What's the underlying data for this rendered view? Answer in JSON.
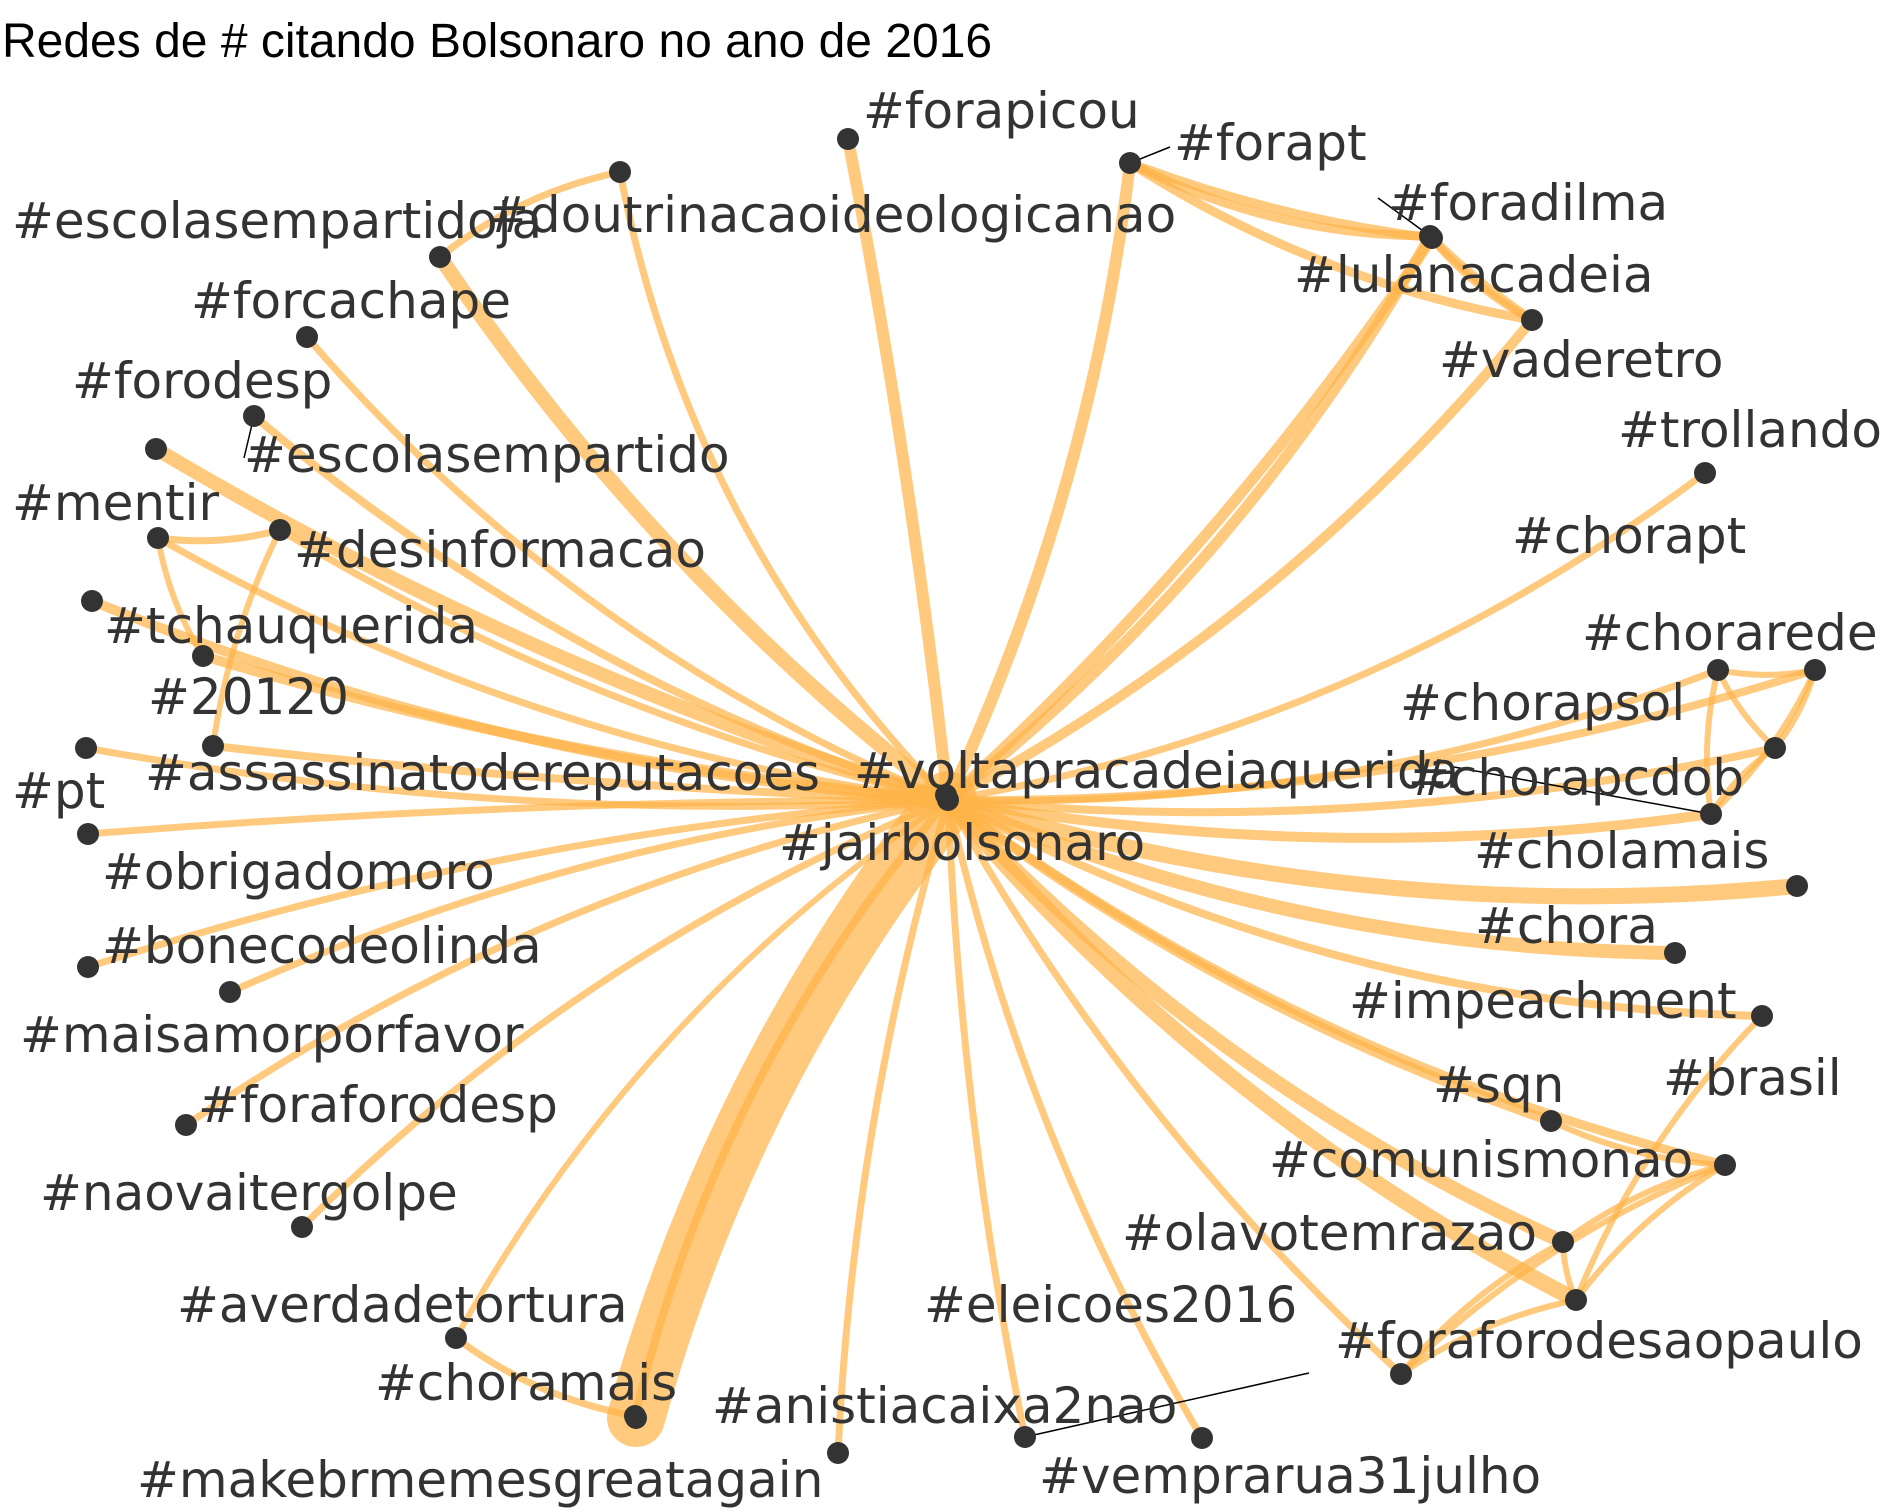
{
  "title": "Redes de # citando Bolsonaro no ano de 2016",
  "colors": {
    "edge": "#ffb347",
    "node": "#333333",
    "label": "#333333",
    "connector": "#000000"
  },
  "nodes": [
    {
      "id": "jairbolsonaro",
      "label": "#jairbolsonaro"
    },
    {
      "id": "voltapracadeiaquerida",
      "label": "#voltapracadeiaquerida"
    },
    {
      "id": "forapicou",
      "label": "#forapicou"
    },
    {
      "id": "forapt",
      "label": "#forapt"
    },
    {
      "id": "foradilma",
      "label": "#foradilma"
    },
    {
      "id": "lulanacadeia",
      "label": "#lulanacadeia"
    },
    {
      "id": "vaderetro",
      "label": "#vaderetro"
    },
    {
      "id": "doutrinacaoideologicanao",
      "label": "#doutrinacaoideologicanao"
    },
    {
      "id": "escolasempartidoja",
      "label": "#escolasempartidoja"
    },
    {
      "id": "forcachape",
      "label": "#forcachape"
    },
    {
      "id": "forodesp",
      "label": "#forodesp"
    },
    {
      "id": "escolasempartido",
      "label": "#escolasempartido"
    },
    {
      "id": "mentir",
      "label": "#mentir"
    },
    {
      "id": "desinformacao",
      "label": "#desinformacao"
    },
    {
      "id": "tchauquerida",
      "label": "#tchauquerida"
    },
    {
      "id": "20120",
      "label": "#20120"
    },
    {
      "id": "assassinatodereputacoes",
      "label": "#assassinatodereputacoes"
    },
    {
      "id": "pt",
      "label": "#pt"
    },
    {
      "id": "obrigadomoro",
      "label": "#obrigadomoro"
    },
    {
      "id": "bonecodeolinda",
      "label": "#bonecodeolinda"
    },
    {
      "id": "maisamorporfavor",
      "label": "#maisamorporfavor"
    },
    {
      "id": "foraforodesp",
      "label": "#foraforodesp"
    },
    {
      "id": "naovaitergolpe",
      "label": "#naovaitergolpe"
    },
    {
      "id": "averdadetortura",
      "label": "#averdadetortura"
    },
    {
      "id": "choramais",
      "label": "#choramais"
    },
    {
      "id": "makebrmemesgreatagain",
      "label": "#makebrmemesgreatagain"
    },
    {
      "id": "anistiacaixa2nao",
      "label": "#anistiacaixa2nao"
    },
    {
      "id": "eleicoes2016",
      "label": "#eleicoes2016"
    },
    {
      "id": "vemprarua31julho",
      "label": "#vemprarua31julho"
    },
    {
      "id": "foraforodesaopaulo",
      "label": "#foraforodesaopaulo"
    },
    {
      "id": "olavotemrazao",
      "label": "#olavotemrazao"
    },
    {
      "id": "comunismonao",
      "label": "#comunismonao"
    },
    {
      "id": "sqn",
      "label": "#sqn"
    },
    {
      "id": "brasil",
      "label": "#brasil"
    },
    {
      "id": "impeachment",
      "label": "#impeachment"
    },
    {
      "id": "chora",
      "label": "#chora"
    },
    {
      "id": "cholamais",
      "label": "#cholamais"
    },
    {
      "id": "chorapcdob",
      "label": "#chorapcdob"
    },
    {
      "id": "chorapsol",
      "label": "#chorapsol"
    },
    {
      "id": "chorarede",
      "label": "#chorarede"
    },
    {
      "id": "chorapt",
      "label": "#chorapt"
    },
    {
      "id": "trollando",
      "label": "#trollando"
    }
  ]
}
